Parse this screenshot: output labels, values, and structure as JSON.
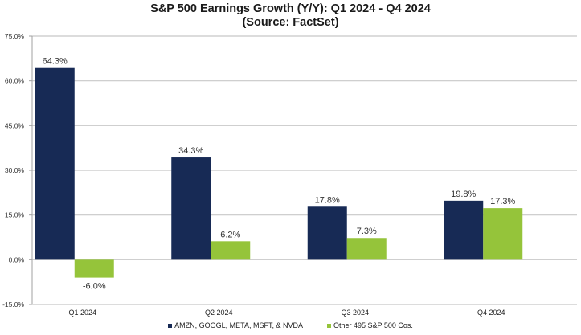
{
  "chart_data": {
    "type": "bar",
    "title": "S&P 500 Earnings Growth (Y/Y): Q1 2024 - Q4 2024",
    "subtitle": "(Source: FactSet)",
    "xlabel": "",
    "ylabel": "",
    "categories": [
      "Q1 2024",
      "Q2 2024",
      "Q3 2024",
      "Q4 2024"
    ],
    "series": [
      {
        "name": "AMZN, GOOGL, META, MSFT, & NVDA",
        "color": "#172a55",
        "values": [
          64.3,
          34.3,
          17.8,
          19.8
        ],
        "labels": [
          "64.3%",
          "34.3%",
          "17.8%",
          "19.8%"
        ]
      },
      {
        "name": "Other 495 S&P 500 Cos.",
        "color": "#95c43a",
        "values": [
          -6.0,
          6.2,
          7.3,
          17.3
        ],
        "labels": [
          "-6.0%",
          "6.2%",
          "7.3%",
          "17.3%"
        ]
      }
    ],
    "ylim": [
      -15,
      75
    ],
    "yticks": [
      75,
      60,
      45,
      30,
      15,
      0,
      -15
    ],
    "ytick_labels": [
      "75.0%",
      "60.0%",
      "45.0%",
      "30.0%",
      "15.0%",
      "0.0%",
      "-15.0%"
    ],
    "grid": true,
    "legend_position": "bottom-center"
  }
}
